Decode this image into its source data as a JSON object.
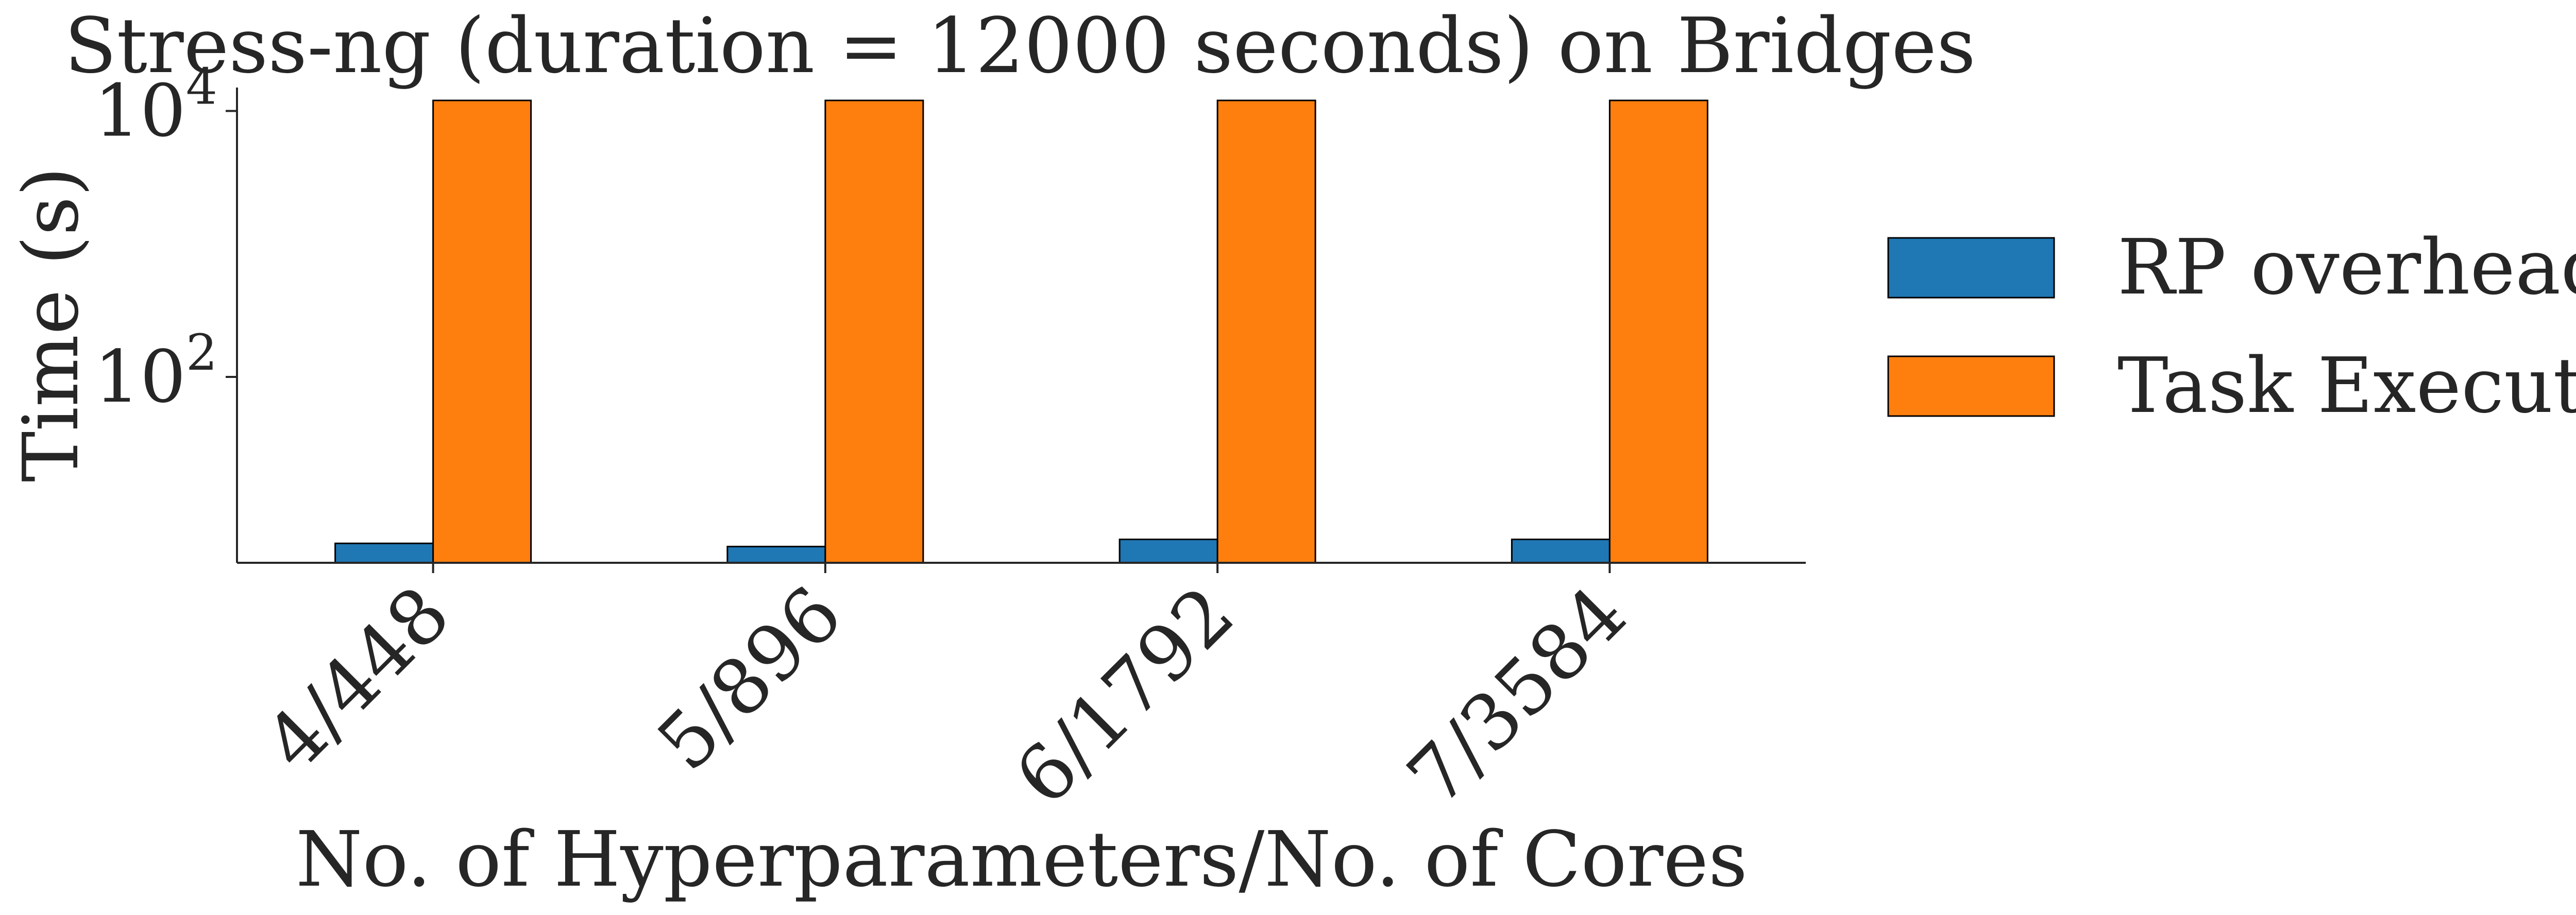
{
  "chart_data": {
    "type": "bar",
    "title": "Stress-ng (duration = 12000 seconds) on Bridges",
    "xlabel": "No. of Hyperparameters/No. of Cores",
    "ylabel": "Time (s)",
    "yscale": "log",
    "ylim": [
      4,
      15000
    ],
    "yticks": [
      {
        "value": 100,
        "base": "10",
        "exp": "2"
      },
      {
        "value": 10000,
        "base": "10",
        "exp": "4"
      }
    ],
    "categories": [
      "4/448",
      "5/896",
      "6/1792",
      "7/3584"
    ],
    "series": [
      {
        "name": "RP overhead",
        "color": "#1f77b4",
        "values": [
          5.6,
          5.3,
          6.0,
          6.0
        ]
      },
      {
        "name": "Task Execution",
        "color": "#ff7f0e",
        "values": [
          12000,
          12000,
          12000,
          12000
        ]
      }
    ],
    "legend": "right",
    "grid": false
  }
}
